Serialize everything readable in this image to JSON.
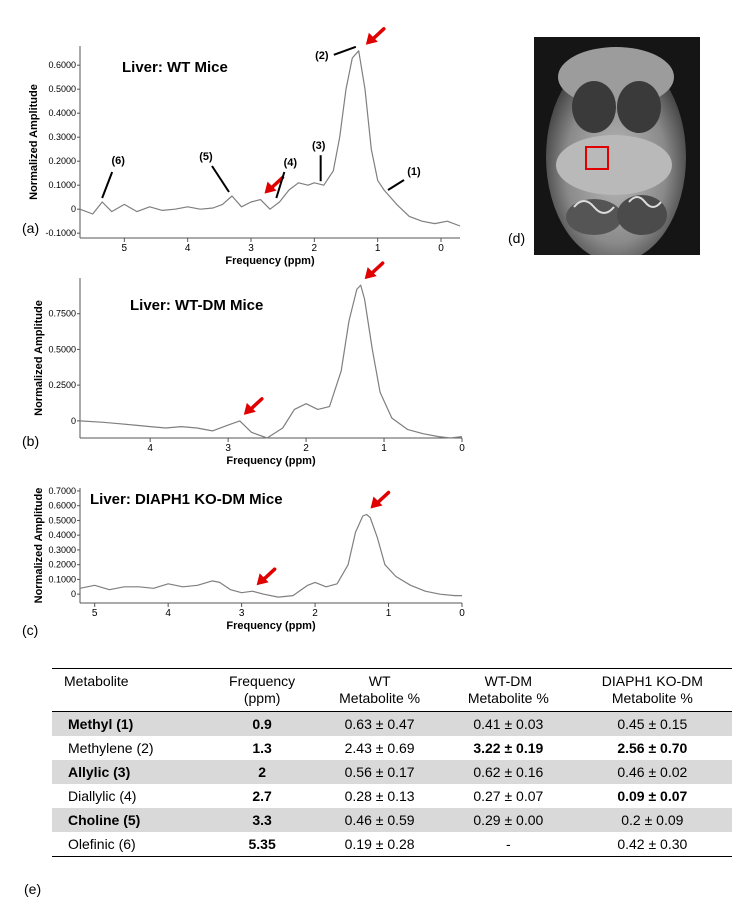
{
  "chart_data": [
    {
      "type": "line",
      "panel": "(a)",
      "title": "Liver:  WT Mice",
      "xlabel": "Frequency (ppm)",
      "ylabel": "Normalized Amplitude",
      "xlim": [
        5.7,
        -0.3
      ],
      "ylim": [
        -0.12,
        0.68
      ],
      "x_ticks": [
        "5",
        "4",
        "3",
        "2",
        "1",
        "0"
      ],
      "y_ticks": [
        "0.6000",
        "0.5000",
        "0.4000",
        "0.3000",
        "0.2000",
        "0.1000",
        "0",
        "-0.1000"
      ],
      "peak_labels": [
        "(1)",
        "(2)",
        "(3)",
        "(4)",
        "(5)",
        "(6)"
      ],
      "arrow_markers_ppm": [
        1.25,
        2.85
      ],
      "series": [
        {
          "name": "WT",
          "x": [
            5.7,
            5.5,
            5.35,
            5.2,
            5.0,
            4.8,
            4.6,
            4.4,
            4.2,
            4.0,
            3.8,
            3.6,
            3.45,
            3.3,
            3.15,
            3.0,
            2.85,
            2.7,
            2.55,
            2.4,
            2.25,
            2.1,
            2.0,
            1.85,
            1.7,
            1.6,
            1.5,
            1.4,
            1.3,
            1.2,
            1.1,
            1.0,
            0.9,
            0.7,
            0.5,
            0.3,
            0.1,
            -0.1,
            -0.3
          ],
          "values": [
            0.0,
            -0.02,
            0.03,
            -0.01,
            0.02,
            -0.01,
            0.01,
            -0.005,
            0.0,
            0.01,
            0.0,
            0.005,
            0.02,
            0.055,
            0.01,
            0.03,
            0.04,
            0.0,
            0.03,
            0.08,
            0.11,
            0.1,
            0.11,
            0.1,
            0.16,
            0.3,
            0.5,
            0.63,
            0.66,
            0.5,
            0.25,
            0.12,
            0.08,
            0.02,
            -0.03,
            -0.05,
            -0.06,
            -0.05,
            -0.07
          ]
        }
      ]
    },
    {
      "type": "line",
      "panel": "(b)",
      "title": "Liver: WT-DM Mice",
      "xlabel": "Frequency (ppm)",
      "ylabel": "Normalized Amplitude",
      "xlim": [
        4.9,
        0
      ],
      "ylim": [
        -0.12,
        1.0
      ],
      "x_ticks": [
        "4",
        "3",
        "2",
        "1",
        "0"
      ],
      "y_ticks": [
        "0.7500",
        "0.5000",
        "0.2500",
        "0"
      ],
      "arrow_markers_ppm": [
        1.3,
        2.85
      ],
      "series": [
        {
          "name": "WT-DM",
          "x": [
            4.9,
            4.6,
            4.4,
            4.2,
            4.0,
            3.8,
            3.6,
            3.4,
            3.2,
            3.0,
            2.85,
            2.7,
            2.5,
            2.3,
            2.15,
            2.0,
            1.85,
            1.7,
            1.55,
            1.45,
            1.35,
            1.3,
            1.25,
            1.15,
            1.05,
            0.9,
            0.7,
            0.5,
            0.3,
            0.15,
            0
          ],
          "values": [
            0.0,
            -0.01,
            -0.02,
            -0.03,
            -0.04,
            -0.05,
            -0.04,
            -0.05,
            -0.07,
            -0.03,
            0.0,
            -0.08,
            -0.12,
            -0.05,
            0.08,
            0.12,
            0.08,
            0.1,
            0.35,
            0.7,
            0.92,
            0.95,
            0.85,
            0.5,
            0.2,
            0.02,
            -0.06,
            -0.09,
            -0.11,
            -0.12,
            -0.11
          ]
        }
      ]
    },
    {
      "type": "line",
      "panel": "(c)",
      "title": "Liver:  DIAPH1 KO-DM Mice",
      "xlabel": "Frequency (ppm)",
      "ylabel": "Normalized Amplitude",
      "xlim": [
        5.2,
        0
      ],
      "ylim": [
        -0.06,
        0.72
      ],
      "x_ticks": [
        "5",
        "4",
        "3",
        "2",
        "1",
        "0"
      ],
      "y_ticks": [
        "0.7000",
        "0.6000",
        "0.5000",
        "0.4000",
        "0.3000",
        "0.2000",
        "0.1000",
        "0"
      ],
      "arrow_markers_ppm": [
        1.3,
        2.85
      ],
      "series": [
        {
          "name": "DIAPH1 KO-DM",
          "x": [
            5.2,
            5.0,
            4.8,
            4.6,
            4.4,
            4.2,
            4.0,
            3.8,
            3.6,
            3.4,
            3.3,
            3.15,
            3.0,
            2.85,
            2.7,
            2.5,
            2.3,
            2.1,
            2.0,
            1.85,
            1.7,
            1.55,
            1.45,
            1.35,
            1.3,
            1.25,
            1.15,
            1.05,
            0.9,
            0.7,
            0.5,
            0.3,
            0.1,
            0
          ],
          "values": [
            0.04,
            0.06,
            0.03,
            0.05,
            0.05,
            0.04,
            0.07,
            0.05,
            0.06,
            0.09,
            0.08,
            0.03,
            0.01,
            0.02,
            0.0,
            -0.02,
            -0.01,
            0.06,
            0.08,
            0.05,
            0.07,
            0.2,
            0.42,
            0.53,
            0.54,
            0.52,
            0.38,
            0.2,
            0.12,
            0.06,
            0.02,
            0.0,
            -0.01,
            -0.01
          ]
        }
      ]
    }
  ],
  "mri_panel_label": "(d)",
  "table_label": "(e)",
  "table": {
    "headers": [
      {
        "l1": "Metabolite",
        "l2": ""
      },
      {
        "l1": "Frequency",
        "l2": "(ppm)"
      },
      {
        "l1": "WT",
        "l2": "Metabolite  %"
      },
      {
        "l1": "WT-DM",
        "l2": "Metabolite  %"
      },
      {
        "l1": "DIAPH1  KO-DM",
        "l2": "Metabolite  %"
      }
    ],
    "rows": [
      {
        "name": "Methyl  (1)",
        "freq": "0.9",
        "wt": "0.63 ± 0.47",
        "wtdm": "0.41 ± 0.03",
        "ko": "0.45 ± 0.15",
        "shade": true,
        "bold": [
          true,
          false,
          false,
          false
        ]
      },
      {
        "name": "Methylene  (2)",
        "freq": "1.3",
        "wt": "2.43 ± 0.69",
        "wtdm": "3.22 ± 0.19",
        "ko": "2.56 ± 0.70",
        "shade": false,
        "bold": [
          false,
          false,
          true,
          true
        ]
      },
      {
        "name": "Allylic  (3)",
        "freq": "2",
        "wt": "0.56 ± 0.17",
        "wtdm": "0.62 ± 0.16",
        "ko": "0.46 ± 0.02",
        "shade": true,
        "bold": [
          true,
          false,
          false,
          false
        ]
      },
      {
        "name": "Diallylic  (4)",
        "freq": "2.7",
        "wt": "0.28 ± 0.13",
        "wtdm": "0.27 ± 0.07",
        "ko": "0.09 ± 0.07",
        "shade": false,
        "bold": [
          false,
          false,
          false,
          true
        ]
      },
      {
        "name": "Choline  (5)",
        "freq": "3.3",
        "wt": "0.46 ± 0.59",
        "wtdm": "0.29 ± 0.00",
        "ko": "0.2 ± 0.09",
        "shade": true,
        "bold": [
          true,
          false,
          false,
          false
        ]
      },
      {
        "name": "Olefinic  (6)",
        "freq": "5.35",
        "wt": "0.19 ± 0.28",
        "wtdm": "-",
        "ko": "0.42 ± 0.30",
        "shade": false,
        "bold": [
          false,
          false,
          false,
          false
        ]
      }
    ]
  },
  "colors": {
    "trace": "#7f7f7f",
    "arrow": "#e00000",
    "roi": "#e00000",
    "shade": "#d9d9d9"
  }
}
